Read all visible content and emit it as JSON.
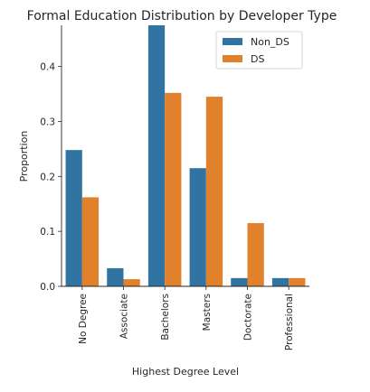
{
  "chart_data": {
    "type": "bar",
    "title": "Formal Education Distribution by Developer Type",
    "xlabel": "Highest Degree Level",
    "ylabel": "Proportion",
    "categories": [
      "No Degree",
      "Associate",
      "Bachelors",
      "Masters",
      "Doctorate",
      "Professional"
    ],
    "series": [
      {
        "name": "Non_DS",
        "color": "#3274a1",
        "values": [
          0.248,
          0.033,
          0.475,
          0.215,
          0.015,
          0.015
        ]
      },
      {
        "name": "DS",
        "color": "#e1812c",
        "values": [
          0.162,
          0.013,
          0.352,
          0.345,
          0.115,
          0.015
        ]
      }
    ],
    "ylim": [
      0,
      0.475
    ],
    "yticks": [
      0.0,
      0.1,
      0.2,
      0.3,
      0.4
    ],
    "ytick_labels": [
      "0.0",
      "0.1",
      "0.2",
      "0.3",
      "0.4"
    ],
    "grid": false,
    "legend_position": "top-right"
  }
}
